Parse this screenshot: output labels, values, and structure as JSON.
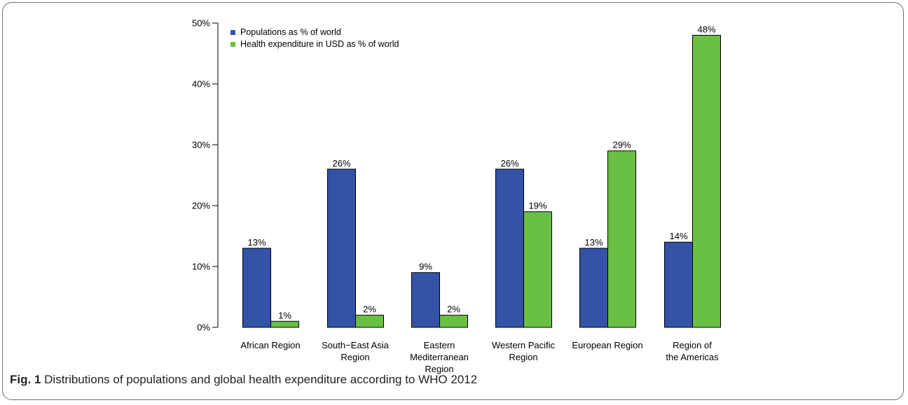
{
  "caption": {
    "label": "Fig. 1",
    "text": "Distributions of populations and global health expenditure according to WHO 2012"
  },
  "colors": {
    "population": "#3452a6",
    "expenditure": "#6abf45"
  },
  "chart_data": {
    "type": "bar",
    "categories": [
      [
        "African Region"
      ],
      [
        "South−East Asia",
        "Region"
      ],
      [
        "Eastern",
        "Mediterranean",
        "Region"
      ],
      [
        "Western Pacific",
        "Region"
      ],
      [
        "European Region"
      ],
      [
        "Region of",
        "the Americas"
      ]
    ],
    "series": [
      {
        "name": "Populations as % of world",
        "values": [
          13,
          26,
          9,
          26,
          13,
          14
        ],
        "labels": [
          "13%",
          "26%",
          "9%",
          "26%",
          "13%",
          "14%"
        ]
      },
      {
        "name": "Health expenditure in USD as % of world",
        "values": [
          1,
          2,
          2,
          19,
          29,
          48
        ],
        "labels": [
          "1%",
          "2%",
          "2%",
          "19%",
          "29%",
          "48%"
        ]
      }
    ],
    "ylim": [
      0,
      50
    ],
    "yticks": [
      0,
      10,
      20,
      30,
      40,
      50
    ],
    "ytick_labels": [
      "0%",
      "10%",
      "20%",
      "30%",
      "40%",
      "50%"
    ],
    "xlabel": "",
    "ylabel": "",
    "grid": false,
    "legend": "top-left"
  }
}
